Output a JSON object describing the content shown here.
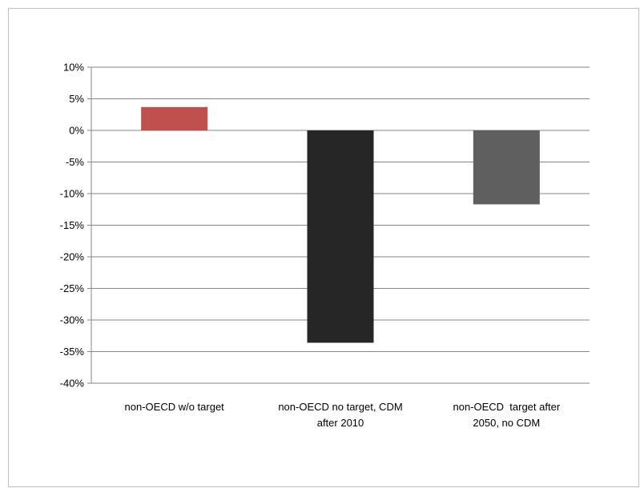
{
  "chart_data": {
    "type": "bar",
    "title": "",
    "xlabel": "",
    "ylabel": "",
    "categories": [
      [
        "non-OECD w/o target"
      ],
      [
        "non-OECD no target, CDM",
        "after 2010"
      ],
      [
        "non-OECD  target after",
        "2050, no CDM"
      ]
    ],
    "values": [
      3.7,
      -33.6,
      -11.7
    ],
    "unit": "%",
    "ylim": [
      -40,
      10
    ],
    "yticks": [
      10,
      5,
      0,
      -5,
      -10,
      -15,
      -20,
      -25,
      -30,
      -35,
      -40
    ],
    "ytick_labels": [
      "10%",
      "5%",
      "0%",
      "-5%",
      "-10%",
      "-15%",
      "-20%",
      "-25%",
      "-30%",
      "-35%",
      "-40%"
    ],
    "grid": true,
    "legend": "none",
    "bar_colors": [
      "#c0504d",
      "#262626",
      "#5f5f5f"
    ],
    "gridline_color": "#868686"
  }
}
